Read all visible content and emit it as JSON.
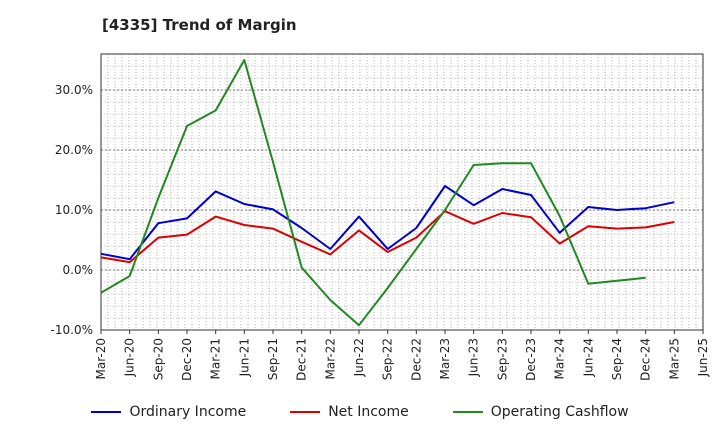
{
  "chart_data": {
    "type": "line",
    "title": "[4335]  Trend of Margin",
    "x": [
      "Mar-20",
      "Jun-20",
      "Sep-20",
      "Dec-20",
      "Mar-21",
      "Jun-21",
      "Sep-21",
      "Dec-21",
      "Mar-22",
      "Jun-22",
      "Sep-22",
      "Dec-22",
      "Mar-23",
      "Jun-23",
      "Sep-23",
      "Dec-23",
      "Mar-24",
      "Jun-24",
      "Sep-24",
      "Dec-24",
      "Mar-25",
      "Jun-25"
    ],
    "y_ticks": [
      -10,
      0,
      10,
      20,
      30
    ],
    "y_tick_labels": [
      "-10.0%",
      "0.0%",
      "10.0%",
      "20.0%",
      "30.0%"
    ],
    "ylim": [
      -10,
      36
    ],
    "grid": true,
    "legend_position": "bottom",
    "series": [
      {
        "name": "Ordinary Income",
        "color": "#0000cc",
        "values": [
          2.7,
          1.8,
          7.8,
          8.6,
          13.1,
          11.0,
          10.1,
          7.0,
          3.5,
          8.9,
          3.5,
          7.0,
          14.0,
          10.8,
          13.5,
          12.5,
          6.2,
          10.5,
          10.0,
          10.3,
          11.3,
          null
        ]
      },
      {
        "name": "Net Income",
        "color": "#dd0000",
        "values": [
          2.1,
          1.3,
          5.4,
          5.9,
          8.9,
          7.5,
          6.9,
          4.7,
          2.6,
          6.6,
          3.0,
          5.4,
          9.8,
          7.7,
          9.5,
          8.8,
          4.4,
          7.3,
          6.9,
          7.1,
          8.0,
          null
        ]
      },
      {
        "name": "Operating Cashflow",
        "color": "#228822",
        "values": [
          -3.8,
          -1.0,
          12.0,
          24.0,
          26.6,
          35.0,
          18.0,
          0.4,
          -5.0,
          -9.2,
          -3.0,
          3.5,
          10.0,
          17.5,
          17.8,
          17.8,
          9.0,
          -2.3,
          -1.8,
          -1.3,
          null,
          null
        ]
      }
    ]
  }
}
